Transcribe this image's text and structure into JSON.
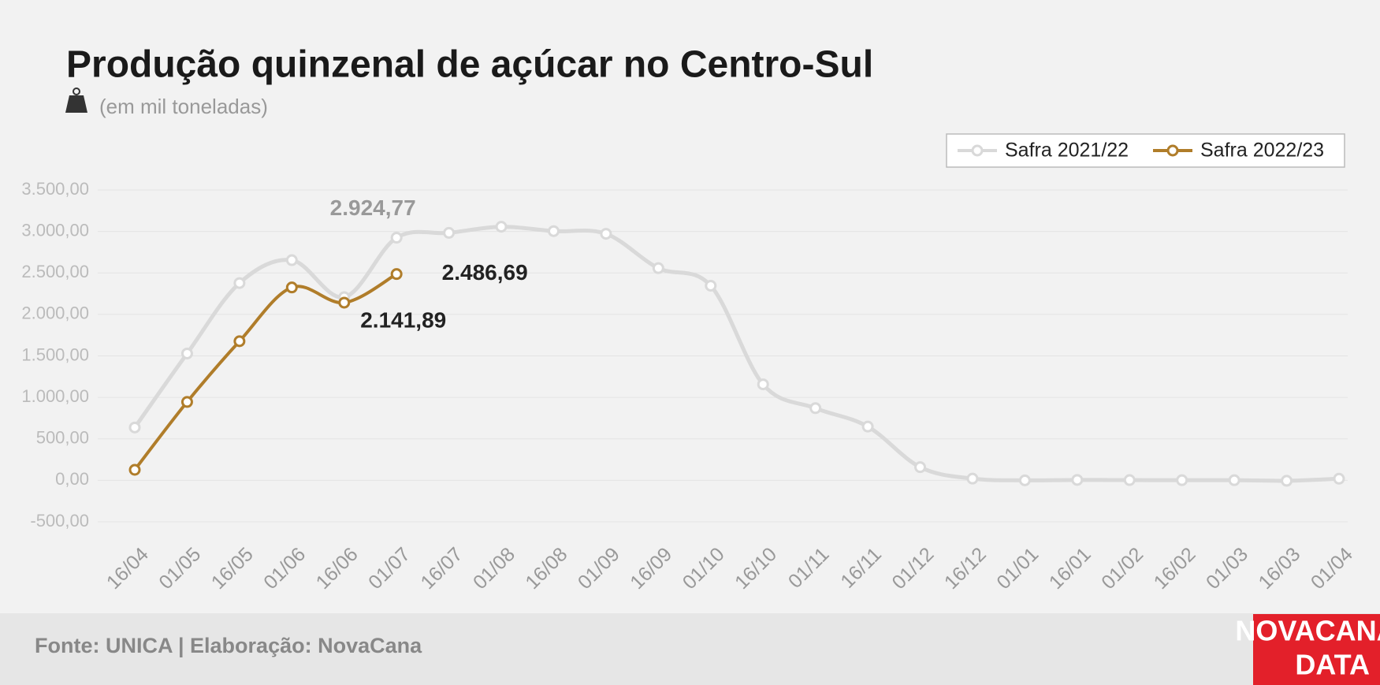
{
  "chart_data": {
    "type": "line",
    "title": "Produção quinzenal de açúcar no Centro-Sul",
    "subtitle": "(em mil toneladas)",
    "source": "Fonte: UNICA | Elaboração: NovaCana",
    "logo": [
      "NOVACANA",
      "DATA"
    ],
    "categories": [
      "16/04",
      "01/05",
      "16/05",
      "01/06",
      "16/06",
      "01/07",
      "16/07",
      "01/08",
      "16/08",
      "01/09",
      "16/09",
      "01/10",
      "16/10",
      "01/11",
      "16/11",
      "01/12",
      "16/12",
      "01/01",
      "16/01",
      "01/02",
      "16/02",
      "01/03",
      "16/03",
      "01/04"
    ],
    "series": [
      {
        "name": "Safra 2021/22",
        "color": "#d9d9d9",
        "label_color": "#999999",
        "values": [
          637,
          1529,
          2378,
          2654,
          2208,
          2924.77,
          2983,
          3057,
          3004,
          2972,
          2558,
          2346,
          1157,
          870,
          648,
          159,
          21,
          0,
          5,
          3,
          2,
          2,
          -5,
          20
        ],
        "value_labels": [
          null,
          null,
          null,
          null,
          null,
          "2.924,77",
          null,
          null,
          null,
          null,
          null,
          null,
          null,
          null,
          null,
          null,
          null,
          null,
          null,
          null,
          null,
          null,
          null,
          null
        ]
      },
      {
        "name": "Safra 2022/23",
        "color": "#b07d2a",
        "label_color": "#222222",
        "values": [
          127,
          945,
          1677,
          2325,
          2141.89,
          2486.69,
          null,
          null,
          null,
          null,
          null,
          null,
          null,
          null,
          null,
          null,
          null,
          null,
          null,
          null,
          null,
          null,
          null,
          null
        ],
        "value_labels": [
          null,
          null,
          null,
          null,
          "2.141,89",
          "2.486,69",
          null,
          null,
          null,
          null,
          null,
          null,
          null,
          null,
          null,
          null,
          null,
          null,
          null,
          null,
          null,
          null,
          null,
          null
        ]
      }
    ],
    "ylim": [
      -500,
      3500
    ],
    "yticks": [
      {
        "value": -500,
        "label": "-500,00"
      },
      {
        "value": 0,
        "label": "0,00"
      },
      {
        "value": 500,
        "label": "500,00"
      },
      {
        "value": 1000,
        "label": "1.000,00"
      },
      {
        "value": 1500,
        "label": "1.500,00"
      },
      {
        "value": 2000,
        "label": "2.000,00"
      },
      {
        "value": 2500,
        "label": "2.500,00"
      },
      {
        "value": 3000,
        "label": "3.000,00"
      },
      {
        "value": 3500,
        "label": "3.500,00"
      }
    ],
    "grid": true,
    "legend": "top-right"
  }
}
